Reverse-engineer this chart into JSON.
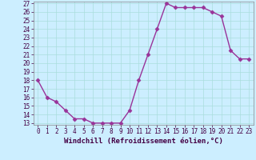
{
  "x": [
    0,
    1,
    2,
    3,
    4,
    5,
    6,
    7,
    8,
    9,
    10,
    11,
    12,
    13,
    14,
    15,
    16,
    17,
    18,
    19,
    20,
    21,
    22,
    23
  ],
  "y": [
    18.0,
    16.0,
    15.5,
    14.5,
    13.5,
    13.5,
    13.0,
    13.0,
    13.0,
    13.0,
    14.5,
    18.0,
    21.0,
    24.0,
    27.0,
    26.5,
    26.5,
    26.5,
    26.5,
    26.0,
    25.5,
    21.5,
    20.5,
    20.5
  ],
  "line_color": "#993399",
  "marker": "D",
  "marker_size": 2.5,
  "bg_color": "#cceeff",
  "grid_color": "#aadddd",
  "xlabel": "Windchill (Refroidissement éolien,°C)",
  "ylim": [
    13,
    27
  ],
  "xlim": [
    -0.5,
    23.5
  ],
  "yticks": [
    13,
    14,
    15,
    16,
    17,
    18,
    19,
    20,
    21,
    22,
    23,
    24,
    25,
    26,
    27
  ],
  "xticks": [
    0,
    1,
    2,
    3,
    4,
    5,
    6,
    7,
    8,
    9,
    10,
    11,
    12,
    13,
    14,
    15,
    16,
    17,
    18,
    19,
    20,
    21,
    22,
    23
  ],
  "xlabel_fontsize": 6.5,
  "tick_fontsize": 5.5,
  "line_width": 1.0
}
